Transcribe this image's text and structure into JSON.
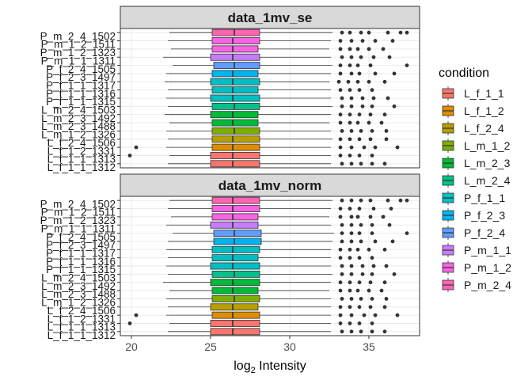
{
  "chart_data": {
    "type": "boxplot",
    "orientation": "horizontal",
    "facet_layout": "vertical",
    "xlabel_main": "log",
    "xlabel_sub": "2",
    "xlabel_rest": " Intensity",
    "xlim": [
      19.3,
      38.2
    ],
    "xticks": [
      20,
      25,
      30,
      35
    ],
    "x_tick_labels": [
      "20",
      "25",
      "30",
      "35"
    ],
    "grid": true,
    "legend": {
      "title": "condition",
      "position": "right"
    },
    "sample_labels": [
      "P_m_2_4_1502",
      "P_m_1_2_1511",
      "P_m_1_2_1323",
      "P_m_1_1_1311",
      "P_f_2_4_1505",
      "P_f_2_3_1497",
      "P_f_1_1_1317",
      "P_f_1_1_1316",
      "P_f_1_1_1315",
      "L_m_2_4_1503",
      "L_m_2_3_1492",
      "L_m_2_3_1488",
      "L_m_1_2_1326",
      "L_f_2_4_1506",
      "L_f_1_2_1331",
      "L_f_1_1_1313",
      "L_f_1_1_1312"
    ],
    "conditions": [
      {
        "name": "L_f_1_1",
        "color": "#F8766D"
      },
      {
        "name": "L_f_1_2",
        "color": "#DE8C00"
      },
      {
        "name": "L_f_2_4",
        "color": "#B79F00"
      },
      {
        "name": "L_m_1_2",
        "color": "#7CAE00"
      },
      {
        "name": "L_m_2_3",
        "color": "#00BA38"
      },
      {
        "name": "L_m_2_4",
        "color": "#00C08B"
      },
      {
        "name": "P_f_1_1",
        "color": "#00BFC4"
      },
      {
        "name": "P_f_2_3",
        "color": "#00B4F0"
      },
      {
        "name": "P_f_2_4",
        "color": "#619CFF"
      },
      {
        "name": "P_m_1_1",
        "color": "#C77CFF"
      },
      {
        "name": "P_m_1_2",
        "color": "#F564E3"
      },
      {
        "name": "P_m_2_4",
        "color": "#FF64B0"
      }
    ],
    "panels": [
      {
        "title": "data_1mv_se",
        "samples": [
          {
            "condition": "P_m_2_4",
            "stats": [
              22.4,
              25.1,
              26.5,
              28.1,
              32.7
            ],
            "outliers": [
              33.3,
              33.8,
              34.5,
              35.0,
              36.2,
              37.0,
              37.4
            ]
          },
          {
            "condition": "P_m_1_2",
            "stats": [
              22.3,
              25.1,
              26.4,
              28.1,
              32.6
            ],
            "outliers": [
              33.2,
              33.9,
              34.6,
              35.4,
              36.5
            ]
          },
          {
            "condition": "P_m_1_2",
            "stats": [
              22.5,
              25.1,
              26.4,
              28.0,
              32.5
            ],
            "outliers": [
              33.2,
              33.8,
              34.3,
              35.0,
              35.9
            ]
          },
          {
            "condition": "P_m_1_1",
            "stats": [
              22.0,
              25.0,
              26.4,
              28.1,
              32.6
            ],
            "outliers": [
              33.3,
              33.9,
              34.5,
              35.3,
              36.3
            ]
          },
          {
            "condition": "P_f_2_4",
            "stats": [
              22.6,
              25.2,
              26.5,
              28.1,
              32.7
            ],
            "outliers": [
              33.2,
              33.8,
              34.3,
              35.1,
              37.4
            ]
          },
          {
            "condition": "P_f_2_3",
            "stats": [
              22.2,
              25.1,
              26.4,
              28.0,
              32.6
            ],
            "outliers": [
              33.2,
              33.9,
              34.4,
              35.4,
              36.6
            ]
          },
          {
            "condition": "P_f_1_1",
            "stats": [
              22.1,
              25.0,
              26.4,
              28.1,
              32.5
            ],
            "outliers": [
              33.1,
              33.7,
              34.3,
              35.0,
              36.0
            ]
          },
          {
            "condition": "P_f_1_1",
            "stats": [
              22.3,
              25.1,
              26.4,
              28.0,
              32.6
            ],
            "outliers": [
              33.2,
              33.8,
              34.4,
              35.2
            ]
          },
          {
            "condition": "P_f_1_1",
            "stats": [
              22.2,
              25.0,
              26.4,
              28.1,
              32.6
            ],
            "outliers": [
              33.3,
              33.9,
              34.6,
              35.3,
              36.2
            ]
          },
          {
            "condition": "L_m_2_4",
            "stats": [
              22.3,
              25.1,
              26.5,
              28.1,
              32.7
            ],
            "outliers": [
              33.3,
              33.9,
              34.6,
              35.2,
              36.6
            ]
          },
          {
            "condition": "L_m_2_3",
            "stats": [
              22.1,
              25.0,
              26.4,
              28.0,
              32.6
            ],
            "outliers": [
              33.2,
              33.8,
              34.4,
              35.1,
              36.0
            ]
          },
          {
            "condition": "L_m_2_3",
            "stats": [
              22.4,
              25.1,
              26.4,
              28.0,
              32.5
            ],
            "outliers": [
              33.2,
              33.8,
              34.3,
              35.0,
              35.8
            ]
          },
          {
            "condition": "L_m_1_2",
            "stats": [
              22.2,
              25.1,
              26.5,
              28.1,
              32.6
            ],
            "outliers": [
              33.3,
              33.9,
              34.5,
              35.2,
              36.1
            ]
          },
          {
            "condition": "L_f_2_4",
            "stats": [
              22.3,
              25.1,
              26.4,
              28.1,
              32.7
            ],
            "outliers": [
              33.2,
              33.8,
              34.4,
              35.1,
              36.1
            ]
          },
          {
            "condition": "L_f_1_2",
            "stats": [
              22.2,
              25.1,
              26.4,
              28.1,
              32.6
            ],
            "outliers": [
              20.3,
              33.2,
              33.9,
              34.7,
              35.4,
              36.8
            ]
          },
          {
            "condition": "L_f_1_1",
            "stats": [
              22.4,
              25.0,
              26.4,
              28.1,
              32.6
            ],
            "outliers": [
              19.9,
              33.2,
              33.8,
              34.4,
              35.2
            ]
          },
          {
            "condition": "L_f_1_1",
            "stats": [
              22.3,
              25.0,
              26.4,
              28.1,
              32.6
            ],
            "outliers": [
              33.3,
              33.9,
              34.5,
              35.2,
              36.0
            ]
          }
        ]
      },
      {
        "title": "data_1mv_norm",
        "samples": [
          {
            "condition": "P_m_2_4",
            "stats": [
              22.4,
              25.1,
              26.4,
              28.1,
              32.7
            ],
            "outliers": [
              33.3,
              33.9,
              34.5,
              35.1,
              36.2,
              37.0,
              37.4
            ]
          },
          {
            "condition": "P_m_1_2",
            "stats": [
              22.3,
              25.1,
              26.4,
              28.1,
              32.6
            ],
            "outliers": [
              33.2,
              33.8,
              34.4,
              35.3,
              36.4
            ]
          },
          {
            "condition": "P_m_1_2",
            "stats": [
              22.5,
              25.1,
              26.4,
              28.0,
              32.5
            ],
            "outliers": [
              33.2,
              33.9,
              34.3,
              35.1,
              35.9
            ]
          },
          {
            "condition": "P_m_1_1",
            "stats": [
              22.2,
              25.0,
              26.4,
              28.0,
              32.6
            ],
            "outliers": [
              33.3,
              33.9,
              34.5,
              35.2,
              36.3
            ]
          },
          {
            "condition": "P_f_2_4",
            "stats": [
              22.6,
              25.2,
              26.5,
              28.2,
              32.8
            ],
            "outliers": [
              33.3,
              33.9,
              34.4,
              35.2,
              37.4
            ]
          },
          {
            "condition": "P_f_2_3",
            "stats": [
              22.3,
              25.2,
              26.5,
              28.2,
              32.7
            ],
            "outliers": [
              33.3,
              33.9,
              34.5,
              35.4,
              36.5
            ]
          },
          {
            "condition": "P_f_1_1",
            "stats": [
              22.2,
              25.1,
              26.4,
              28.1,
              32.6
            ],
            "outliers": [
              33.2,
              33.8,
              34.3,
              35.0,
              36.0
            ]
          },
          {
            "condition": "P_f_1_1",
            "stats": [
              22.3,
              25.1,
              26.4,
              28.0,
              32.6
            ],
            "outliers": [
              33.2,
              33.8,
              34.4,
              35.2
            ]
          },
          {
            "condition": "P_f_1_1",
            "stats": [
              22.2,
              25.0,
              26.4,
              28.1,
              32.6
            ],
            "outliers": [
              33.3,
              33.9,
              34.6,
              35.3,
              36.1
            ]
          },
          {
            "condition": "L_m_2_4",
            "stats": [
              22.3,
              25.1,
              26.5,
              28.1,
              32.7
            ],
            "outliers": [
              33.3,
              33.9,
              34.6,
              35.2,
              36.6
            ]
          },
          {
            "condition": "L_m_2_3",
            "stats": [
              22.0,
              25.0,
              26.4,
              28.1,
              32.6
            ],
            "outliers": [
              33.2,
              33.8,
              34.4,
              35.1,
              36.0
            ]
          },
          {
            "condition": "L_m_2_3",
            "stats": [
              22.4,
              25.1,
              26.4,
              28.0,
              32.5
            ],
            "outliers": [
              33.2,
              33.8,
              34.3,
              35.0,
              35.8
            ]
          },
          {
            "condition": "L_m_1_2",
            "stats": [
              22.2,
              25.1,
              26.5,
              28.1,
              32.6
            ],
            "outliers": [
              33.3,
              33.9,
              34.5,
              35.2,
              36.1
            ]
          },
          {
            "condition": "L_f_2_4",
            "stats": [
              22.3,
              25.0,
              26.4,
              28.0,
              32.6
            ],
            "outliers": [
              33.2,
              33.8,
              34.4,
              35.1,
              36.0
            ]
          },
          {
            "condition": "L_f_1_2",
            "stats": [
              22.2,
              25.1,
              26.4,
              28.1,
              32.6
            ],
            "outliers": [
              20.3,
              33.2,
              33.9,
              34.7,
              35.4,
              36.8
            ]
          },
          {
            "condition": "L_f_1_1",
            "stats": [
              22.4,
              25.0,
              26.4,
              28.1,
              32.6
            ],
            "outliers": [
              19.9,
              33.2,
              33.8,
              34.4,
              35.2
            ]
          },
          {
            "condition": "L_f_1_1",
            "stats": [
              22.3,
              25.0,
              26.4,
              28.1,
              32.6
            ],
            "outliers": [
              33.3,
              33.9,
              34.5,
              35.2,
              36.0
            ]
          }
        ]
      }
    ]
  }
}
